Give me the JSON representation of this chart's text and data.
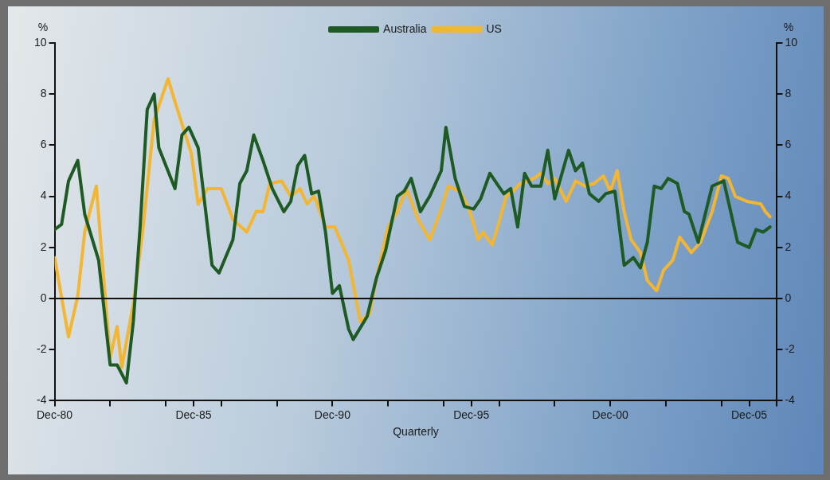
{
  "chart_data": {
    "type": "line",
    "xlabel": "Quarterly",
    "ylabel": "%",
    "y2label": "%",
    "legend": "top",
    "marker": "none",
    "grid": false,
    "xlim": [
      "1980-12",
      "2006-12"
    ],
    "xticks": [
      {
        "value": "1980-12",
        "label": "Dec-80"
      },
      {
        "value": "1982-12",
        "label": null
      },
      {
        "value": "1984-12",
        "label": null
      },
      {
        "value": "1985-12",
        "label": "Dec-85"
      },
      {
        "value": "1986-12",
        "label": null
      },
      {
        "value": "1988-12",
        "label": null
      },
      {
        "value": "1990-12",
        "label": "Dec-90"
      },
      {
        "value": "1992-12",
        "label": null
      },
      {
        "value": "1994-12",
        "label": null
      },
      {
        "value": "1995-12",
        "label": "Dec-95"
      },
      {
        "value": "1996-12",
        "label": null
      },
      {
        "value": "1998-12",
        "label": null
      },
      {
        "value": "2000-12",
        "label": "Dec-00"
      },
      {
        "value": "2002-12",
        "label": null
      },
      {
        "value": "2004-12",
        "label": null
      },
      {
        "value": "2005-12",
        "label": "Dec-05"
      },
      {
        "value": "2006-12",
        "label": null
      }
    ],
    "ylim": [
      -4,
      10
    ],
    "yticks": [
      -4,
      -2,
      0,
      2,
      4,
      6,
      8,
      10
    ],
    "y2lim": [
      -4,
      10
    ],
    "y2ticks": [
      -4,
      -2,
      0,
      2,
      4,
      6,
      8,
      10
    ],
    "ref_lines": [
      {
        "axis": "y",
        "value": 0,
        "color": "#111111"
      }
    ],
    "series": [
      {
        "name": "Australia",
        "color": "#1e5b24",
        "x": [
          "1980-12",
          "1981-03",
          "1981-06",
          "1981-10",
          "1982-01",
          "1982-07",
          "1982-12",
          "1983-03",
          "1983-07",
          "1983-10",
          "1984-01",
          "1984-04",
          "1984-07",
          "1984-09",
          "1985-04",
          "1985-07",
          "1985-10",
          "1986-02",
          "1986-08",
          "1986-11",
          "1987-05",
          "1987-08",
          "1987-11",
          "1988-02",
          "1988-06",
          "1988-10",
          "1989-03",
          "1989-06",
          "1989-09",
          "1989-12",
          "1990-03",
          "1990-06",
          "1990-09",
          "1990-12",
          "1991-03",
          "1991-07",
          "1991-09",
          "1992-03",
          "1992-07",
          "1992-11",
          "1993-04",
          "1993-07",
          "1993-10",
          "1994-02",
          "1994-06",
          "1994-11",
          "1995-01",
          "1995-05",
          "1995-09",
          "1996-01",
          "1996-04",
          "1996-08",
          "1996-11",
          "1997-02",
          "1997-05",
          "1997-08",
          "1997-11",
          "1998-02",
          "1998-06",
          "1998-09",
          "1998-12",
          "1999-06",
          "1999-09",
          "1999-12",
          "2000-03",
          "2000-07",
          "2000-10",
          "2001-02",
          "2001-06",
          "2001-10",
          "2002-01",
          "2002-04",
          "2002-07",
          "2002-10",
          "2003-01",
          "2003-05",
          "2003-08",
          "2003-10",
          "2004-02",
          "2004-08",
          "2005-01",
          "2005-07",
          "2005-12",
          "2006-03",
          "2006-06",
          "2006-09"
        ],
        "values": [
          2.7,
          2.9,
          4.6,
          5.4,
          3.3,
          1.5,
          -2.6,
          -2.6,
          -3.3,
          -0.9,
          2.9,
          7.4,
          8.0,
          5.9,
          4.3,
          6.4,
          6.7,
          5.9,
          1.3,
          1.0,
          2.3,
          4.5,
          5.0,
          6.4,
          5.4,
          4.3,
          3.4,
          3.8,
          5.2,
          5.6,
          4.1,
          4.2,
          2.6,
          0.2,
          0.5,
          -1.2,
          -1.6,
          -0.7,
          0.8,
          1.9,
          4.0,
          4.2,
          4.7,
          3.4,
          4.0,
          5.0,
          6.7,
          4.7,
          3.6,
          3.5,
          3.9,
          4.9,
          4.5,
          4.1,
          4.3,
          2.8,
          4.9,
          4.4,
          4.4,
          5.8,
          3.9,
          5.8,
          5.0,
          5.3,
          4.1,
          3.8,
          4.1,
          4.2,
          1.3,
          1.6,
          1.2,
          2.2,
          4.4,
          4.3,
          4.7,
          4.5,
          3.4,
          3.3,
          2.2,
          4.4,
          4.6,
          2.2,
          2.0,
          2.7,
          2.6,
          2.8
        ]
      },
      {
        "name": "US",
        "color": "#f2b632",
        "x": [
          "1980-12",
          "1981-06",
          "1981-10",
          "1982-01",
          "1982-06",
          "1982-09",
          "1982-12",
          "1983-03",
          "1983-05",
          "1983-10",
          "1984-02",
          "1984-07",
          "1985-01",
          "1985-04",
          "1985-11",
          "1986-02",
          "1986-06",
          "1986-12",
          "1987-05",
          "1987-11",
          "1988-03",
          "1988-06",
          "1988-09",
          "1989-02",
          "1989-06",
          "1989-10",
          "1990-01",
          "1990-04",
          "1990-05",
          "1990-09",
          "1991-01",
          "1991-07",
          "1991-12",
          "1992-04",
          "1992-07",
          "1992-12",
          "1993-04",
          "1993-08",
          "1994-01",
          "1994-06",
          "1994-11",
          "1995-02",
          "1995-07",
          "1995-11",
          "1996-03",
          "1996-05",
          "1996-09",
          "1996-12",
          "1997-03",
          "1997-06",
          "1997-09",
          "1998-03",
          "1998-06",
          "1998-09",
          "1998-12",
          "1999-05",
          "1999-09",
          "2000-01",
          "2000-05",
          "2000-09",
          "2000-12",
          "2001-03",
          "2001-06",
          "2001-09",
          "2002-01",
          "2002-04",
          "2002-08",
          "2002-11",
          "2003-03",
          "2003-06",
          "2003-11",
          "2004-03",
          "2004-08",
          "2004-12",
          "2005-03",
          "2005-06",
          "2005-11",
          "2006-05",
          "2006-07",
          "2006-09"
        ],
        "values": [
          1.6,
          -1.5,
          0.1,
          2.6,
          4.4,
          1.0,
          -2.3,
          -1.1,
          -2.7,
          -0.2,
          2.6,
          7.0,
          8.6,
          7.7,
          5.7,
          3.7,
          4.3,
          4.3,
          3.1,
          2.6,
          3.4,
          3.4,
          4.5,
          4.6,
          4.0,
          4.3,
          3.7,
          4.0,
          3.8,
          2.8,
          2.8,
          1.5,
          -0.9,
          -0.6,
          0.8,
          2.8,
          3.4,
          4.3,
          3.1,
          2.3,
          3.5,
          4.4,
          4.2,
          3.5,
          2.3,
          2.6,
          2.1,
          3.0,
          4.0,
          4.2,
          4.5,
          4.7,
          4.9,
          4.5,
          4.7,
          3.8,
          4.6,
          4.4,
          4.5,
          4.8,
          4.2,
          5.0,
          3.4,
          2.3,
          1.8,
          0.7,
          0.3,
          1.1,
          1.5,
          2.4,
          1.8,
          2.2,
          3.4,
          4.8,
          4.7,
          4.0,
          3.8,
          3.7,
          3.4,
          3.2
        ]
      }
    ]
  }
}
